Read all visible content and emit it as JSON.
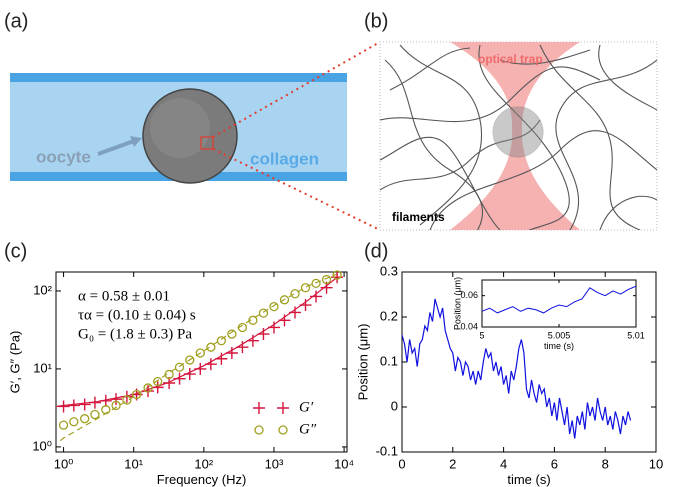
{
  "panels": {
    "a": {
      "label": "(a)",
      "oocyte": "oocyte",
      "collagen": "collagen"
    },
    "b": {
      "label": "(b)",
      "optical_trap": "optical trap",
      "filaments": "filaments"
    },
    "c": {
      "label": "(c)"
    },
    "d": {
      "label": "(d)"
    }
  },
  "chart_data": [
    {
      "type": "scatter",
      "log_x": true,
      "log_y": true,
      "xlabel": "Frequency (Hz)",
      "ylabel": "G′, G″ (Pa)",
      "xlim": [
        0.78,
        11000
      ],
      "ylim": [
        0.86,
        175
      ],
      "xticks": [
        {
          "value": 1,
          "label": "10⁰"
        },
        {
          "value": 10,
          "label": "10¹"
        },
        {
          "value": 100,
          "label": "10²"
        },
        {
          "value": 1000,
          "label": "10³"
        },
        {
          "value": 10000,
          "label": "10⁴"
        }
      ],
      "yticks": [
        {
          "value": 1,
          "label": "10⁰"
        },
        {
          "value": 10,
          "label": "10¹"
        },
        {
          "value": 100,
          "label": "10²"
        }
      ],
      "annotations": [
        "α = 0.58 ± 0.01",
        "τα = (0.10 ± 0.04) s",
        "G₀ = (1.8 ± 0.3) Pa"
      ],
      "x": [
        1,
        1.4,
        2,
        2.8,
        4,
        5.6,
        8,
        11,
        16,
        22,
        32,
        45,
        63,
        89,
        126,
        178,
        251,
        355,
        501,
        708,
        1000,
        1413,
        1995,
        2818,
        3981,
        5623,
        7943
      ],
      "series": [
        {
          "name": "G′",
          "color": "#d4153c",
          "marker": "plus",
          "values": [
            3.3,
            3.4,
            3.5,
            3.7,
            3.9,
            4.1,
            4.4,
            4.7,
            5.2,
            5.8,
            6.6,
            7.5,
            8.6,
            10,
            11.5,
            13.5,
            16,
            19,
            23,
            28,
            34,
            42,
            53,
            66,
            85,
            110,
            150
          ]
        },
        {
          "name": "G″",
          "color": "#a0a020",
          "marker": "circle",
          "values": [
            1.9,
            2.1,
            2.3,
            2.6,
            3.0,
            3.4,
            4.0,
            4.7,
            5.7,
            6.9,
            8.5,
            10.5,
            13,
            16,
            19,
            23,
            28,
            34,
            42,
            52,
            63,
            77,
            92,
            110,
            125,
            140,
            160
          ]
        }
      ],
      "fits": [
        {
          "color": "#d4153c",
          "dashed": false,
          "x": [
            0.78,
            1,
            3,
            10,
            30,
            100,
            300,
            1000,
            3000,
            8000
          ],
          "values": [
            3.3,
            3.4,
            3.8,
            4.7,
            6.6,
            11,
            19,
            37,
            75,
            150
          ]
        },
        {
          "color": "#a0a020",
          "dashed": true,
          "x": [
            0.9,
            1,
            3,
            10,
            30,
            100,
            300,
            1000,
            3000,
            8000
          ],
          "values": [
            1.2,
            1.3,
            2.3,
            4.4,
            8.6,
            17,
            33,
            65,
            115,
            165
          ]
        }
      ]
    },
    {
      "type": "line",
      "xlabel": "time (s)",
      "ylabel": "Position (μm)",
      "color": "#1010e0",
      "xlim": [
        0,
        10
      ],
      "ylim": [
        -0.1,
        0.3
      ],
      "xticks": [
        0,
        2,
        4,
        6,
        8,
        10
      ],
      "yticks": [
        -0.1,
        0,
        0.1,
        0.2,
        0.3
      ],
      "x": [
        0,
        0.1,
        0.2,
        0.3,
        0.4,
        0.5,
        0.6,
        0.7,
        0.8,
        0.9,
        1,
        1.1,
        1.2,
        1.3,
        1.4,
        1.5,
        1.6,
        1.7,
        1.8,
        1.9,
        2,
        2.1,
        2.2,
        2.3,
        2.4,
        2.5,
        2.6,
        2.7,
        2.8,
        2.9,
        3,
        3.1,
        3.2,
        3.3,
        3.4,
        3.5,
        3.6,
        3.7,
        3.8,
        3.9,
        4,
        4.1,
        4.2,
        4.3,
        4.4,
        4.5,
        4.6,
        4.7,
        4.8,
        4.9,
        5,
        5.1,
        5.2,
        5.3,
        5.4,
        5.5,
        5.6,
        5.7,
        5.8,
        5.9,
        6,
        6.1,
        6.2,
        6.3,
        6.4,
        6.5,
        6.6,
        6.7,
        6.8,
        6.9,
        7,
        7.1,
        7.2,
        7.3,
        7.4,
        7.5,
        7.6,
        7.7,
        7.8,
        7.9,
        8,
        8.1,
        8.2,
        8.3,
        8.4,
        8.5,
        8.6,
        8.7,
        8.8,
        8.9,
        9
      ],
      "values": [
        0.16,
        0.14,
        0.1,
        0.15,
        0.12,
        0.13,
        0.09,
        0.14,
        0.15,
        0.18,
        0.17,
        0.21,
        0.19,
        0.24,
        0.22,
        0.2,
        0.22,
        0.17,
        0.15,
        0.13,
        0.12,
        0.08,
        0.11,
        0.1,
        0.07,
        0.1,
        0.09,
        0.06,
        0.08,
        0.05,
        0.08,
        0.06,
        0.1,
        0.13,
        0.11,
        0.12,
        0.08,
        0.1,
        0.07,
        0.09,
        0.05,
        0.07,
        0.03,
        0.08,
        0.06,
        0.09,
        0.13,
        0.15,
        0.12,
        0.04,
        0.02,
        0.06,
        0.03,
        0.01,
        0.05,
        0.03,
        0.04,
        0.0,
        0.02,
        -0.02,
        0.01,
        -0.03,
        0.02,
        -0.01,
        -0.04,
        0.0,
        -0.06,
        -0.03,
        -0.07,
        -0.02,
        -0.04,
        -0.01,
        -0.05,
        0.01,
        -0.02,
        0.0,
        -0.03,
        0.02,
        -0.01,
        -0.03,
        0.0,
        -0.04,
        -0.02,
        -0.05,
        -0.01,
        -0.03,
        -0.06,
        -0.02,
        -0.04,
        -0.01,
        -0.03
      ]
    },
    {
      "type": "line",
      "xlabel": "time (s)",
      "ylabel": "Position (μm)",
      "color": "#1010e0",
      "xlim": [
        5,
        5.01
      ],
      "ylim": [
        0.04,
        0.07
      ],
      "xticks": [
        5,
        5.005,
        5.01
      ],
      "yticks": [
        0.04,
        0.06
      ],
      "x": [
        5,
        5.0005,
        5.001,
        5.0015,
        5.002,
        5.0025,
        5.003,
        5.0035,
        5.004,
        5.0045,
        5.005,
        5.0055,
        5.006,
        5.0065,
        5.007,
        5.0075,
        5.008,
        5.0085,
        5.009,
        5.0095,
        5.01
      ],
      "values": [
        0.05,
        0.052,
        0.049,
        0.051,
        0.053,
        0.05,
        0.052,
        0.051,
        0.049,
        0.052,
        0.054,
        0.053,
        0.056,
        0.058,
        0.065,
        0.062,
        0.06,
        0.063,
        0.061,
        0.064,
        0.066
      ]
    }
  ]
}
